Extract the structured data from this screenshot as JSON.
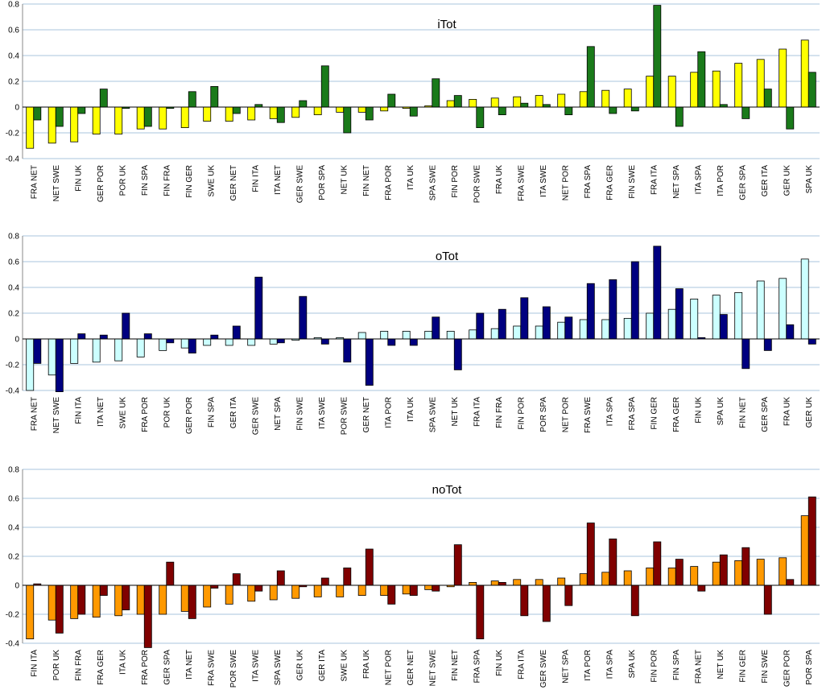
{
  "chart_data": [
    {
      "type": "bar",
      "title": "iTot",
      "categories": [
        "FRA NET",
        "NET SWE",
        "FIN UK",
        "GER POR",
        "POR UK",
        "FIN SPA",
        "FIN FRA",
        "FIN GER",
        "SWE UK",
        "GER NET",
        "FIN ITA",
        "ITA NET",
        "GER SWE",
        "POR SPA",
        "NET UK",
        "FIN NET",
        "FRA POR",
        "ITA UK",
        "SPA SWE",
        "FIN POR",
        "POR SWE",
        "FRA UK",
        "FRA SWE",
        "ITA SWE",
        "NET POR",
        "FRA SPA",
        "FRA GER",
        "FIN SWE",
        "FRA ITA",
        "NET SPA",
        "ITA SPA",
        "ITA POR",
        "GER SPA",
        "GER ITA",
        "GER UK",
        "SPA UK"
      ],
      "series": [
        {
          "color": "#ffff00",
          "values": [
            -0.32,
            -0.28,
            -0.27,
            -0.21,
            -0.21,
            -0.17,
            -0.17,
            -0.16,
            -0.11,
            -0.11,
            -0.1,
            -0.09,
            -0.08,
            -0.06,
            -0.04,
            -0.04,
            -0.03,
            -0.01,
            0.01,
            0.05,
            0.06,
            0.07,
            0.08,
            0.09,
            0.1,
            0.12,
            0.13,
            0.14,
            0.24,
            0.24,
            0.27,
            0.28,
            0.34,
            0.37,
            0.45,
            0.52
          ]
        },
        {
          "color": "#1a7a1a",
          "values": [
            -0.1,
            -0.15,
            -0.05,
            0.14,
            -0.01,
            -0.15,
            -0.01,
            0.12,
            0.16,
            -0.05,
            0.02,
            -0.12,
            0.05,
            0.32,
            -0.2,
            -0.1,
            0.1,
            -0.07,
            0.22,
            0.09,
            -0.16,
            -0.06,
            0.03,
            0.02,
            -0.06,
            0.47,
            -0.05,
            -0.03,
            0.79,
            -0.15,
            0.43,
            0.02,
            -0.09,
            0.14,
            -0.17,
            0.27
          ]
        }
      ],
      "ylim": [
        -0.4,
        0.8
      ],
      "yticks": [
        -0.4,
        -0.2,
        0,
        0.2,
        0.4,
        0.6,
        0.8
      ],
      "grid": true
    },
    {
      "type": "bar",
      "title": "oTot",
      "categories": [
        "FRA NET",
        "NET SWE",
        "FIN ITA",
        "ITA NET",
        "SWE UK",
        "FRA POR",
        "POR UK",
        "GER POR",
        "FIN SPA",
        "GER ITA",
        "GER SWE",
        "NET SPA",
        "FIN SWE",
        "ITA SWE",
        "POR SWE",
        "GER NET",
        "ITA POR",
        "ITA UK",
        "SPA SWE",
        "NET UK",
        "FRA ITA",
        "FIN FRA",
        "FIN POR",
        "POR SPA",
        "NET POR",
        "FRA SWE",
        "ITA SPA",
        "FRA SPA",
        "FIN GER",
        "FRA GER",
        "FIN UK",
        "SPA UK",
        "FIN NET",
        "GER SPA",
        "FRA UK",
        "GER UK"
      ],
      "series": [
        {
          "color": "#ccffff",
          "values": [
            -0.4,
            -0.28,
            -0.19,
            -0.18,
            -0.17,
            -0.14,
            -0.09,
            -0.07,
            -0.05,
            -0.05,
            -0.05,
            -0.04,
            -0.01,
            0.01,
            0.01,
            0.05,
            0.06,
            0.06,
            0.06,
            0.06,
            0.07,
            0.08,
            0.1,
            0.1,
            0.13,
            0.15,
            0.15,
            0.16,
            0.2,
            0.23,
            0.31,
            0.34,
            0.36,
            0.45,
            0.47,
            0.62
          ]
        },
        {
          "color": "#000080",
          "values": [
            -0.19,
            -0.41,
            0.04,
            0.03,
            0.2,
            0.04,
            -0.03,
            -0.11,
            0.03,
            0.1,
            0.48,
            -0.03,
            0.33,
            -0.04,
            -0.18,
            -0.36,
            -0.05,
            -0.05,
            0.17,
            -0.24,
            0.2,
            0.23,
            0.32,
            0.25,
            0.17,
            0.43,
            0.46,
            0.6,
            0.72,
            0.39,
            0.01,
            0.19,
            -0.23,
            -0.09,
            0.11,
            -0.04
          ]
        }
      ],
      "ylim": [
        -0.4,
        0.8
      ],
      "yticks": [
        -0.4,
        -0.2,
        0,
        0.2,
        0.4,
        0.6,
        0.8
      ],
      "grid": true
    },
    {
      "type": "bar",
      "title": "noTot",
      "categories": [
        "FIN ITA",
        "POR UK",
        "FIN FRA",
        "FRA GER",
        "ITA UK",
        "FRA POR",
        "GER SPA",
        "ITA NET",
        "FRA SWE",
        "POR SWE",
        "ITA SWE",
        "SPA SWE",
        "GER UK",
        "GER ITA",
        "SWE UK",
        "FRA UK",
        "NET POR",
        "GER NET",
        "NET SWE",
        "FIN NET",
        "FRA SPA",
        "FIN UK",
        "FRA ITA",
        "GER SWE",
        "NET SPA",
        "ITA POR",
        "ITA SPA",
        "SPA UK",
        "FIN POR",
        "FIN SPA",
        "FRA NET",
        "NET UK",
        "FIN GER",
        "FIN SWE",
        "GER POR",
        "POR SPA"
      ],
      "series": [
        {
          "color": "#ff9900",
          "values": [
            -0.37,
            -0.24,
            -0.23,
            -0.22,
            -0.21,
            -0.2,
            -0.2,
            -0.18,
            -0.15,
            -0.13,
            -0.11,
            -0.1,
            -0.09,
            -0.08,
            -0.08,
            -0.07,
            -0.07,
            -0.06,
            -0.03,
            -0.01,
            0.02,
            0.03,
            0.04,
            0.04,
            0.05,
            0.08,
            0.09,
            0.1,
            0.12,
            0.12,
            0.13,
            0.16,
            0.17,
            0.18,
            0.19,
            0.48
          ]
        },
        {
          "color": "#800000",
          "values": [
            0.01,
            -0.33,
            -0.2,
            -0.07,
            -0.17,
            -0.43,
            0.16,
            -0.23,
            -0.02,
            0.08,
            -0.04,
            0.1,
            -0.01,
            0.05,
            0.12,
            0.25,
            -0.13,
            -0.07,
            -0.04,
            0.28,
            -0.37,
            0.02,
            -0.21,
            -0.25,
            -0.14,
            0.43,
            0.32,
            -0.21,
            0.3,
            0.18,
            -0.04,
            0.21,
            0.26,
            -0.2,
            0.04,
            0.61
          ]
        }
      ],
      "ylim": [
        -0.4,
        0.8
      ],
      "yticks": [
        -0.4,
        -0.2,
        0,
        0.2,
        0.4,
        0.6,
        0.8
      ],
      "grid": true
    }
  ]
}
